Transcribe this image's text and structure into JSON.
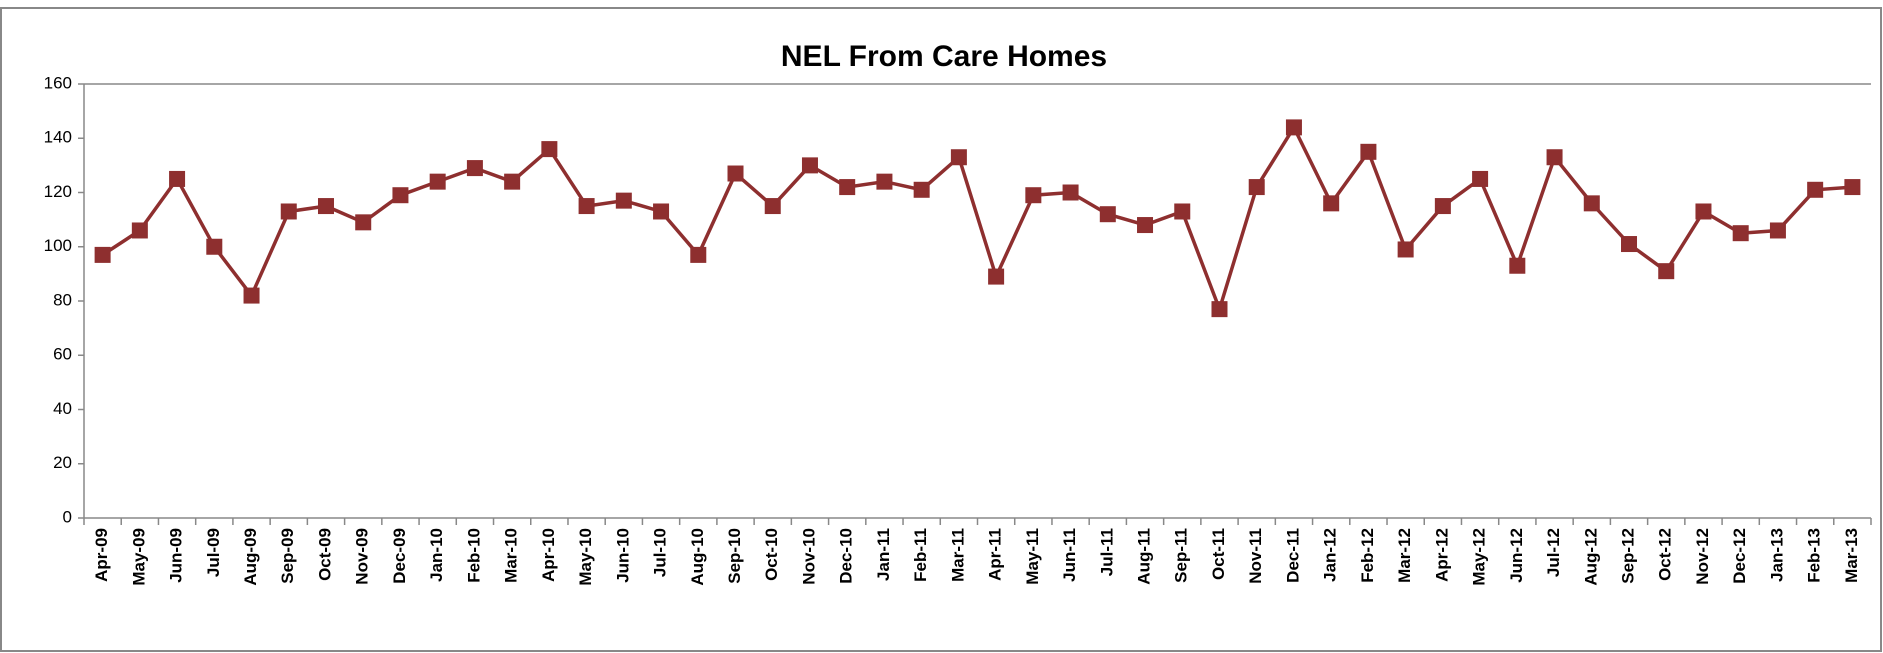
{
  "chart_data": {
    "type": "line",
    "title": "NEL From Care Homes",
    "categories": [
      "Apr-09",
      "May-09",
      "Jun-09",
      "Jul-09",
      "Aug-09",
      "Sep-09",
      "Oct-09",
      "Nov-09",
      "Dec-09",
      "Jan-10",
      "Feb-10",
      "Mar-10",
      "Apr-10",
      "May-10",
      "Jun-10",
      "Jul-10",
      "Aug-10",
      "Sep-10",
      "Oct-10",
      "Nov-10",
      "Dec-10",
      "Jan-11",
      "Feb-11",
      "Mar-11",
      "Apr-11",
      "May-11",
      "Jun-11",
      "Jul-11",
      "Aug-11",
      "Sep-11",
      "Oct-11",
      "Nov-11",
      "Dec-11",
      "Jan-12",
      "Feb-12",
      "Mar-12",
      "Apr-12",
      "May-12",
      "Jun-12",
      "Jul-12",
      "Aug-12",
      "Sep-12",
      "Oct-12",
      "Nov-12",
      "Dec-12",
      "Jan-13",
      "Feb-13",
      "Mar-13"
    ],
    "values": [
      97,
      106,
      125,
      100,
      82,
      113,
      115,
      109,
      119,
      124,
      129,
      124,
      136,
      115,
      117,
      113,
      97,
      127,
      115,
      130,
      122,
      124,
      121,
      133,
      89,
      119,
      120,
      112,
      108,
      113,
      77,
      122,
      144,
      116,
      135,
      99,
      115,
      125,
      93,
      133,
      116,
      101,
      91,
      113,
      105,
      106,
      121,
      122
    ],
    "color": "#8e2f2f",
    "ylim": [
      0,
      160
    ],
    "yticks": [
      0,
      20,
      40,
      60,
      80,
      100,
      120,
      140,
      160
    ],
    "grid": false
  }
}
